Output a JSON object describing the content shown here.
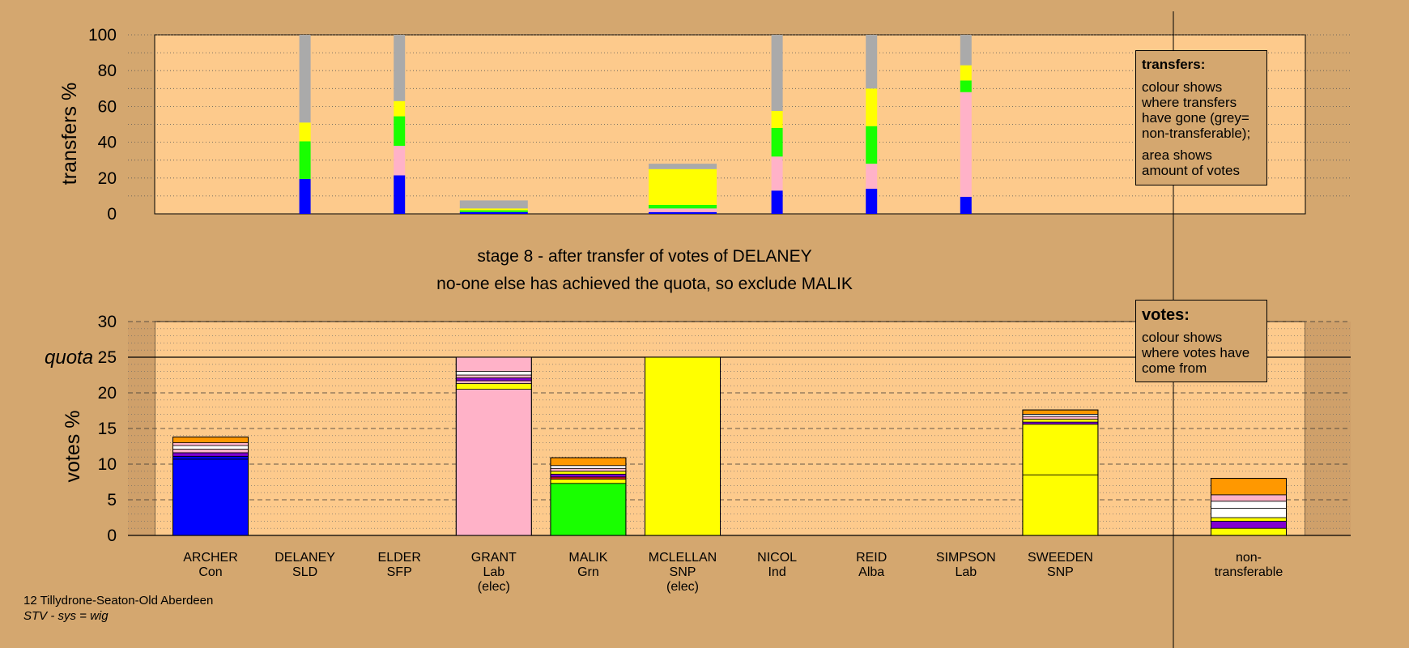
{
  "footer": {
    "line1": "12 Tillydrone-Seaton-Old Aberdeen",
    "line2": "STV - sys = wig"
  },
  "stage": {
    "line1": "stage 8 - after transfer of votes of DELANEY",
    "line2": "no-one else has achieved the quota, so exclude MALIK"
  },
  "quota_label": "quota",
  "legend_transfers": {
    "title": "transfers:",
    "text1": "colour shows where transfers have gone (grey= non-transferable);",
    "text2": "area shows amount of votes"
  },
  "legend_votes": {
    "title": "votes:",
    "text1": "colour shows where votes have come from"
  },
  "colors": {
    "background": "#d4a76f",
    "plot_bg": "#fdca8c",
    "blue": "#0000ff",
    "green": "#19ff00",
    "pink": "#ffb2c8",
    "yellow": "#ffff00",
    "grey": "#aaaaaa",
    "orange": "#ff9800",
    "purple": "#8000d0",
    "white": "#ffffff",
    "red": "#e02020"
  },
  "chart_data": [
    {
      "type": "bar",
      "title": "",
      "ylabel": "transfers %",
      "ylim": [
        0,
        100
      ],
      "yticks": [
        "0",
        "20",
        "40",
        "60",
        "80",
        "100"
      ],
      "bars": [
        {
          "index": 1,
          "segments": [
            {
              "color": "blue",
              "from": 0,
              "to": 19.5
            },
            {
              "color": "green",
              "from": 19.5,
              "to": 40.5
            },
            {
              "color": "yellow",
              "from": 40.5,
              "to": 51
            },
            {
              "color": "grey",
              "from": 51,
              "to": 100
            }
          ]
        },
        {
          "index": 2,
          "segments": [
            {
              "color": "blue",
              "from": 0,
              "to": 21.5
            },
            {
              "color": "pink",
              "from": 21.5,
              "to": 38
            },
            {
              "color": "green",
              "from": 38,
              "to": 54.5
            },
            {
              "color": "yellow",
              "from": 54.5,
              "to": 63
            },
            {
              "color": "grey",
              "from": 63,
              "to": 100
            }
          ]
        },
        {
          "index": 3,
          "wide": true,
          "segments": [
            {
              "color": "blue",
              "from": 0,
              "to": 1
            },
            {
              "color": "green",
              "from": 1,
              "to": 2
            },
            {
              "color": "yellow",
              "from": 2,
              "to": 3
            },
            {
              "color": "grey",
              "from": 3,
              "to": 7.5
            }
          ]
        },
        {
          "index": 5,
          "wide": true,
          "segments": [
            {
              "color": "blue",
              "from": 0,
              "to": 1
            },
            {
              "color": "pink",
              "from": 1,
              "to": 3
            },
            {
              "color": "green",
              "from": 3,
              "to": 5
            },
            {
              "color": "yellow",
              "from": 5,
              "to": 25
            },
            {
              "color": "grey",
              "from": 25,
              "to": 28
            }
          ]
        },
        {
          "index": 6,
          "segments": [
            {
              "color": "blue",
              "from": 0,
              "to": 13
            },
            {
              "color": "pink",
              "from": 13,
              "to": 32
            },
            {
              "color": "green",
              "from": 32,
              "to": 48
            },
            {
              "color": "yellow",
              "from": 48,
              "to": 57.5
            },
            {
              "color": "grey",
              "from": 57.5,
              "to": 100
            }
          ]
        },
        {
          "index": 7,
          "segments": [
            {
              "color": "blue",
              "from": 0,
              "to": 14
            },
            {
              "color": "pink",
              "from": 14,
              "to": 28
            },
            {
              "color": "green",
              "from": 28,
              "to": 49
            },
            {
              "color": "yellow",
              "from": 49,
              "to": 70
            },
            {
              "color": "grey",
              "from": 70,
              "to": 100
            }
          ]
        },
        {
          "index": 8,
          "segments": [
            {
              "color": "blue",
              "from": 0,
              "to": 9.5
            },
            {
              "color": "pink",
              "from": 9.5,
              "to": 68
            },
            {
              "color": "green",
              "from": 68,
              "to": 74.5
            },
            {
              "color": "yellow",
              "from": 74.5,
              "to": 83
            },
            {
              "color": "grey",
              "from": 83,
              "to": 100
            }
          ]
        }
      ]
    },
    {
      "type": "bar",
      "title": "",
      "ylabel": "votes %",
      "ylim": [
        0,
        30
      ],
      "quota": 25,
      "yticks": [
        "0",
        "5",
        "10",
        "15",
        "20",
        "25",
        "30"
      ],
      "categories": [
        {
          "name": "ARCHER",
          "party": "Con",
          "note": ""
        },
        {
          "name": "DELANEY",
          "party": "SLD",
          "note": ""
        },
        {
          "name": "ELDER",
          "party": "SFP",
          "note": ""
        },
        {
          "name": "GRANT",
          "party": "Lab",
          "note": "(elec)"
        },
        {
          "name": "MALIK",
          "party": "Grn",
          "note": ""
        },
        {
          "name": "MCLELLAN",
          "party": "SNP",
          "note": "(elec)"
        },
        {
          "name": "NICOL",
          "party": "Ind",
          "note": ""
        },
        {
          "name": "REID",
          "party": "Alba",
          "note": ""
        },
        {
          "name": "SIMPSON",
          "party": "Lab",
          "note": ""
        },
        {
          "name": "SWEEDEN",
          "party": "SNP",
          "note": ""
        },
        {
          "name": "non-",
          "party": "transferable",
          "note": ""
        }
      ],
      "bars": [
        {
          "index": 0,
          "segments": [
            {
              "color": "blue",
              "from": 0,
              "to": 10.7
            },
            {
              "color": "blue",
              "from": 10.7,
              "to": 11.1
            },
            {
              "color": "purple",
              "from": 11.1,
              "to": 11.6
            },
            {
              "color": "pink",
              "from": 11.6,
              "to": 12.1
            },
            {
              "color": "white",
              "from": 12.1,
              "to": 12.6
            },
            {
              "color": "pink",
              "from": 12.6,
              "to": 13.0
            },
            {
              "color": "orange",
              "from": 13.0,
              "to": 13.8
            }
          ]
        },
        {
          "index": 3,
          "segments": [
            {
              "color": "pink",
              "from": 0,
              "to": 20.5
            },
            {
              "color": "yellow",
              "from": 20.5,
              "to": 21.3
            },
            {
              "color": "pink",
              "from": 21.3,
              "to": 21.7
            },
            {
              "color": "purple",
              "from": 21.7,
              "to": 22.1
            },
            {
              "color": "pink",
              "from": 22.1,
              "to": 22.5
            },
            {
              "color": "white",
              "from": 22.5,
              "to": 23.0
            },
            {
              "color": "pink",
              "from": 23.0,
              "to": 25.0
            }
          ]
        },
        {
          "index": 4,
          "segments": [
            {
              "color": "green",
              "from": 0,
              "to": 7.3
            },
            {
              "color": "yellow",
              "from": 7.3,
              "to": 7.9
            },
            {
              "color": "red",
              "from": 7.9,
              "to": 8.2
            },
            {
              "color": "purple",
              "from": 8.2,
              "to": 8.6
            },
            {
              "color": "yellow",
              "from": 8.6,
              "to": 9.0
            },
            {
              "color": "pink",
              "from": 9.0,
              "to": 9.4
            },
            {
              "color": "white",
              "from": 9.4,
              "to": 9.8
            },
            {
              "color": "orange",
              "from": 9.8,
              "to": 10.9
            }
          ]
        },
        {
          "index": 5,
          "segments": [
            {
              "color": "yellow",
              "from": 0,
              "to": 25.0
            }
          ]
        },
        {
          "index": 9,
          "segments": [
            {
              "color": "yellow",
              "from": 0,
              "to": 8.5
            },
            {
              "color": "yellow",
              "from": 8.5,
              "to": 15.6
            },
            {
              "color": "purple",
              "from": 15.6,
              "to": 15.9
            },
            {
              "color": "yellow",
              "from": 15.9,
              "to": 16.3
            },
            {
              "color": "pink",
              "from": 16.3,
              "to": 16.7
            },
            {
              "color": "white",
              "from": 16.7,
              "to": 17.0
            },
            {
              "color": "orange",
              "from": 17.0,
              "to": 17.6
            }
          ]
        },
        {
          "index": 10,
          "segments": [
            {
              "color": "yellow",
              "from": 0,
              "to": 1.0
            },
            {
              "color": "purple",
              "from": 1.0,
              "to": 2.0
            },
            {
              "color": "yellow",
              "from": 2.0,
              "to": 2.5
            },
            {
              "color": "white",
              "from": 2.5,
              "to": 3.8
            },
            {
              "color": "white",
              "from": 3.8,
              "to": 4.8
            },
            {
              "color": "pink",
              "from": 4.8,
              "to": 5.7
            },
            {
              "color": "orange",
              "from": 5.7,
              "to": 8.0
            }
          ]
        }
      ]
    }
  ]
}
